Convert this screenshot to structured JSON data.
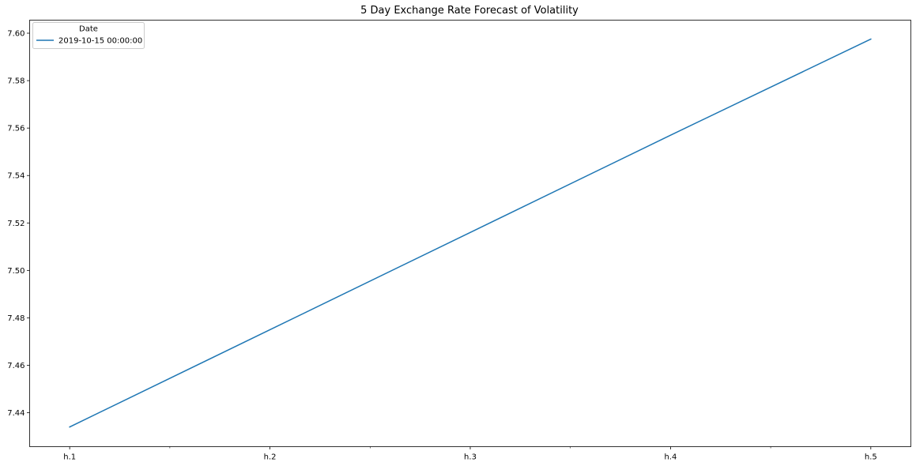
{
  "chart_data": {
    "type": "line",
    "title": "5 Day Exchange Rate Forecast of Volatility",
    "xlabel": "",
    "ylabel": "",
    "categories": [
      "h.1",
      "h.2",
      "h.3",
      "h.4",
      "h.5"
    ],
    "series": [
      {
        "name": "2019-10-15 00:00:00",
        "values": [
          7.434,
          7.475,
          7.516,
          7.557,
          7.5975
        ],
        "color": "#1f77b4"
      }
    ],
    "ylim": [
      7.4257,
      7.6055
    ],
    "yticks": [
      7.44,
      7.46,
      7.48,
      7.5,
      7.52,
      7.54,
      7.56,
      7.58,
      7.6
    ],
    "ytick_labels": [
      "7.44",
      "7.46",
      "7.48",
      "7.50",
      "7.52",
      "7.54",
      "7.56",
      "7.58",
      "7.60"
    ],
    "x_minor_ticks": [
      1.5,
      2.5,
      3.5,
      4.5
    ],
    "xlim": [
      0.8,
      5.2
    ],
    "grid": false,
    "legend": {
      "title": "Date",
      "placement": "upper-left",
      "entries": [
        "2019-10-15 00:00:00"
      ]
    }
  }
}
